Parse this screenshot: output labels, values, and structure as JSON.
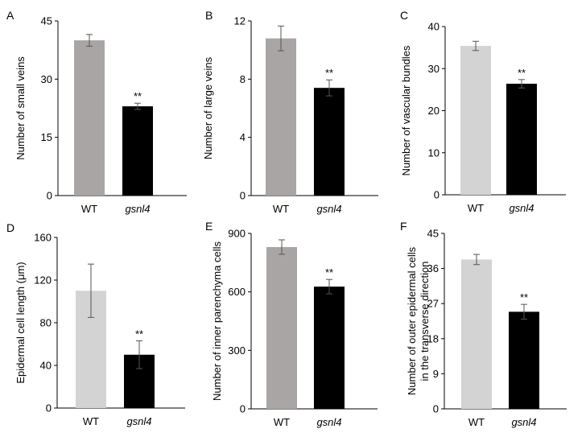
{
  "chart_data": [
    {
      "type": "bar",
      "panel": "A",
      "categories": [
        "WT",
        "gsnl4"
      ],
      "values": [
        40,
        23
      ],
      "errors": [
        1.5,
        0.8
      ],
      "significance": [
        "",
        "**"
      ],
      "ylabel": "Number of small veins",
      "ylim": [
        0,
        45
      ],
      "yticks": [
        "0",
        "15",
        "30",
        "45"
      ],
      "colors": [
        "#aaa5a5",
        "#000000"
      ]
    },
    {
      "type": "bar",
      "panel": "B",
      "categories": [
        "WT",
        "gsnl4"
      ],
      "values": [
        10.8,
        7.4
      ],
      "errors": [
        0.85,
        0.55
      ],
      "significance": [
        "",
        "**"
      ],
      "ylabel": "Number of large veins",
      "ylim": [
        0,
        12
      ],
      "yticks": [
        "0",
        "4",
        "8",
        "12"
      ],
      "colors": [
        "#aaa5a5",
        "#000000"
      ]
    },
    {
      "type": "bar",
      "panel": "C",
      "categories": [
        "WT",
        "gsnl4"
      ],
      "values": [
        35.4,
        26.4
      ],
      "errors": [
        1.1,
        1.0
      ],
      "significance": [
        "",
        "**"
      ],
      "ylabel": "Number of vascular bundles",
      "ylim": [
        0,
        40
      ],
      "yticks": [
        "0",
        "10",
        "20",
        "30",
        "40"
      ],
      "colors": [
        "#d3d3d3",
        "#000000"
      ]
    },
    {
      "type": "bar",
      "panel": "D",
      "categories": [
        "WT",
        "gsnl4"
      ],
      "values": [
        110,
        50
      ],
      "errors": [
        25,
        13
      ],
      "significance": [
        "",
        "**"
      ],
      "ylabel": "Epidermal cell length (μm)",
      "ylim": [
        0,
        160
      ],
      "yticks": [
        "0",
        "40",
        "80",
        "120",
        "160"
      ],
      "colors": [
        "#d3d3d3",
        "#000000"
      ]
    },
    {
      "type": "bar",
      "panel": "E",
      "categories": [
        "WT",
        "gsnl4"
      ],
      "values": [
        830,
        627
      ],
      "errors": [
        37,
        37
      ],
      "significance": [
        "",
        "**"
      ],
      "ylabel": "Number of inner parenchyma cells",
      "ylim": [
        0,
        900
      ],
      "yticks": [
        "0",
        "300",
        "600",
        "900"
      ],
      "colors": [
        "#aaa5a5",
        "#000000"
      ]
    },
    {
      "type": "bar",
      "panel": "F",
      "categories": [
        "WT",
        "gsnl4"
      ],
      "values": [
        38.3,
        24.9
      ],
      "errors": [
        1.3,
        1.9
      ],
      "significance": [
        "",
        "**"
      ],
      "ylabel_lines": [
        "Number of outer epidermal cells",
        "in the transverse direction"
      ],
      "ylim": [
        0,
        45
      ],
      "yticks": [
        "0",
        "9",
        "18",
        "27",
        "36",
        "45"
      ],
      "colors": [
        "#d3d3d3",
        "#000000"
      ]
    }
  ]
}
